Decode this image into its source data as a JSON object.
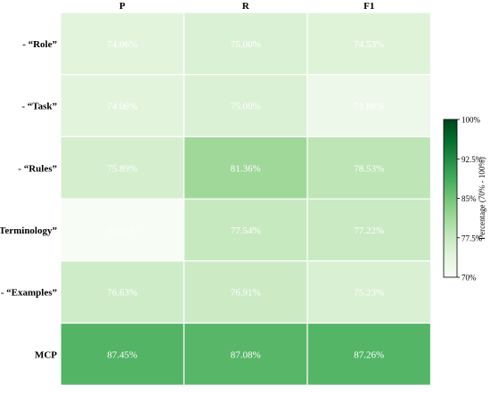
{
  "chart_data": {
    "type": "heatmap",
    "columns": [
      "P",
      "R",
      "F1"
    ],
    "rows": [
      "- “Role”",
      "- “Task”",
      "- “Rules”",
      "- “Terminology”",
      "- “Examples”",
      "MCP"
    ],
    "values": [
      [
        74.06,
        75.0,
        74.53
      ],
      [
        74.06,
        75.0,
        71.88
      ],
      [
        75.89,
        81.36,
        78.53
      ],
      [
        69.01,
        77.54,
        77.22
      ],
      [
        76.63,
        76.91,
        75.23
      ],
      [
        87.45,
        87.08,
        87.26
      ]
    ],
    "cell_labels": [
      [
        "74.06%",
        "75.00%",
        "74.53%"
      ],
      [
        "74.06%",
        "75.00%",
        "71.88%"
      ],
      [
        "75.89%",
        "81.36%",
        "78.53%"
      ],
      [
        "69.01%",
        "77.54%",
        "77.22%"
      ],
      [
        "76.63%",
        "76.91%",
        "75.23%"
      ],
      [
        "87.45%",
        "87.08%",
        "87.26%"
      ]
    ],
    "colorbar": {
      "label": "Percentage (70% - 100%)",
      "range": [
        70,
        100
      ],
      "ticks": [
        70,
        77.5,
        85,
        92.5,
        100
      ],
      "tick_labels": [
        "70%",
        "77.5%",
        "85%",
        "92.5%",
        "100%"
      ],
      "colormap": "Greens",
      "color_low": "#f7fcf5",
      "color_high": "#00441b"
    },
    "cell_text_color": "#ffffff",
    "grid_line_color": "#ffffff"
  }
}
